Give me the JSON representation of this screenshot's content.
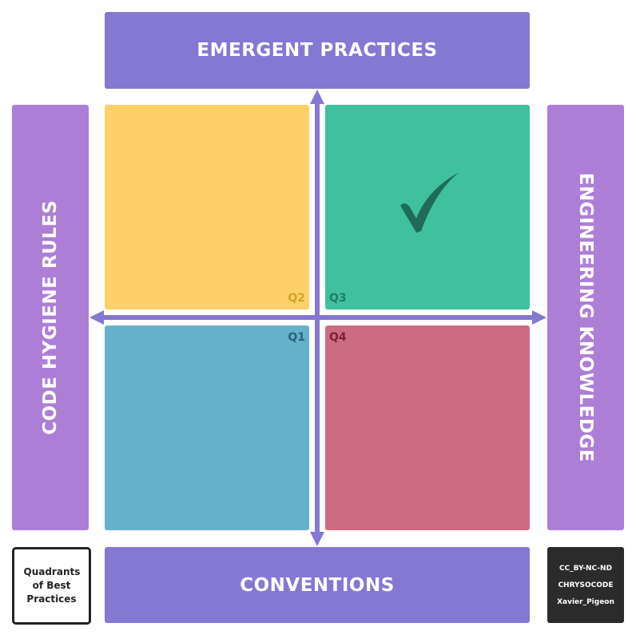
{
  "bands": {
    "top": "EMERGENT PRACTICES",
    "bottom": "CONVENTIONS",
    "left": "CODE HYGIENE RULES",
    "right": "ENGINEERING KNOWLEDGE"
  },
  "quadrants": {
    "q1": {
      "label": "Q1",
      "color": "#65b1cc"
    },
    "q2": {
      "label": "Q2",
      "color": "#fdd06a"
    },
    "q3": {
      "label": "Q3",
      "color": "#3fc19f",
      "mark": "checkmark-icon"
    },
    "q4": {
      "label": "Q4",
      "color": "#cd6b82"
    }
  },
  "legend": {
    "title": "Quadrants of Best Practices"
  },
  "credits": {
    "license": "CC_BY-NC-ND",
    "org": "CHRYSOCODE",
    "author": "Xavier_Pigeon"
  },
  "colors": {
    "band_primary": "#8478d3",
    "band_secondary": "#ad7ed5",
    "axis": "#8478d3",
    "credits_bg": "#2b2b2b"
  }
}
